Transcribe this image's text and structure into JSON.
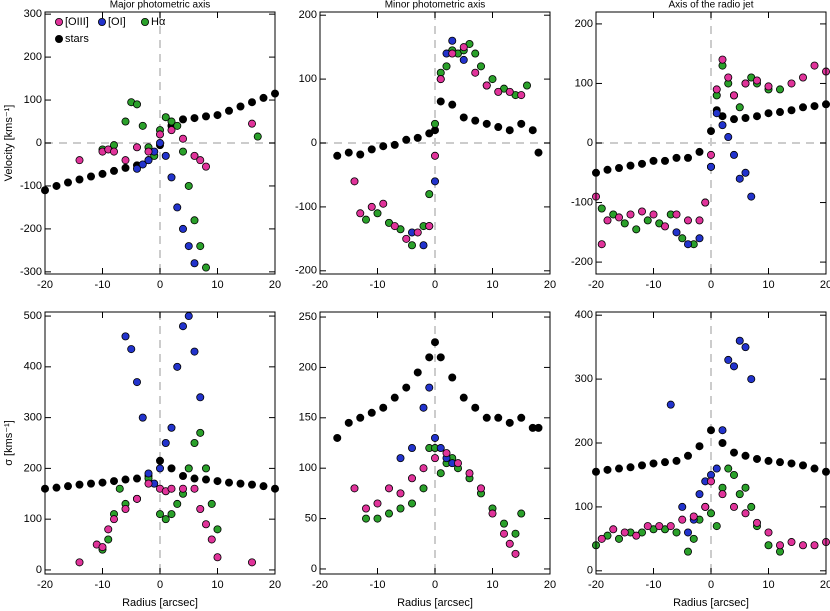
{
  "chart_data": [
    {
      "type": "scatter",
      "title": "Major photometric axis",
      "ylabel": "Velocity [kms⁻¹]",
      "xlim": [
        -20,
        20
      ],
      "xticks": [
        -20,
        -10,
        0,
        10,
        20
      ],
      "ylim": [
        -305,
        305
      ],
      "yticks": [
        -300,
        -200,
        -100,
        0,
        100,
        200,
        300
      ],
      "legend": "upper left",
      "series": [
        {
          "name": "[OIII]",
          "color": "#e0339a",
          "x": [
            -14,
            -10,
            -9,
            -8,
            -6,
            -4,
            -2,
            0,
            2,
            4,
            6,
            7,
            8,
            16
          ],
          "values": [
            -40,
            -20,
            -15,
            -20,
            -40,
            -10,
            -20,
            20,
            30,
            10,
            -30,
            -40,
            -55,
            45
          ]
        },
        {
          "name": "[OI]",
          "color": "#2233cc",
          "x": [
            -4,
            -3,
            -2,
            -1,
            0,
            1,
            2,
            3,
            4,
            5,
            6
          ],
          "values": [
            -60,
            -50,
            -40,
            -20,
            0,
            -30,
            -80,
            -150,
            -200,
            -240,
            -280
          ]
        },
        {
          "name": "Hα",
          "color": "#2aa02a",
          "x": [
            -10,
            -8,
            -6,
            -5,
            -4,
            -3,
            -2,
            -1,
            0,
            1,
            2,
            3,
            4,
            5,
            6,
            7,
            8,
            17
          ],
          "values": [
            -15,
            -5,
            50,
            95,
            90,
            40,
            -10,
            -30,
            30,
            60,
            50,
            40,
            -20,
            -100,
            -180,
            -240,
            -290,
            15
          ]
        },
        {
          "name": "stars",
          "color": "#000000",
          "x": [
            -20,
            -18,
            -16,
            -14,
            -12,
            -10,
            -8,
            -6,
            -4,
            -2,
            0,
            2,
            4,
            6,
            8,
            10,
            12,
            14,
            16,
            18,
            20
          ],
          "values": [
            -110,
            -100,
            -92,
            -85,
            -78,
            -72,
            -65,
            -58,
            -52,
            -40,
            -5,
            40,
            55,
            58,
            62,
            65,
            75,
            85,
            95,
            105,
            115
          ]
        }
      ]
    },
    {
      "type": "scatter",
      "title": "Minor photometric axis",
      "xlim": [
        -20,
        20
      ],
      "xticks": [
        -20,
        -10,
        0,
        10,
        20
      ],
      "ylim": [
        -205,
        205
      ],
      "yticks": [
        -200,
        -100,
        0,
        100,
        200
      ],
      "series": [
        {
          "color": "#e0339a",
          "x": [
            -14,
            -13,
            -11,
            -9,
            -7,
            -5,
            -3,
            -1,
            0,
            1,
            3,
            5,
            7,
            9,
            11,
            13,
            15
          ],
          "values": [
            -60,
            -110,
            -100,
            -95,
            -130,
            -150,
            -140,
            -130,
            -20,
            100,
            140,
            150,
            110,
            90,
            80,
            80,
            75
          ]
        },
        {
          "color": "#2233cc",
          "x": [
            -4,
            -2,
            -1,
            0,
            1,
            2,
            3,
            5
          ],
          "values": [
            -140,
            -160,
            -130,
            -60,
            100,
            140,
            160,
            130
          ]
        },
        {
          "color": "#2aa02a",
          "x": [
            -12,
            -10,
            -8,
            -6,
            -4,
            -2,
            -1,
            0,
            1,
            2,
            3,
            4,
            5,
            6,
            7,
            8,
            9,
            10,
            12,
            14,
            16
          ],
          "values": [
            -120,
            -110,
            -125,
            -135,
            -160,
            -130,
            -80,
            30,
            110,
            120,
            145,
            140,
            145,
            155,
            140,
            120,
            90,
            100,
            85,
            75,
            90
          ]
        },
        {
          "color": "#000000",
          "x": [
            -17,
            -15,
            -13,
            -11,
            -9,
            -7,
            -5,
            -3,
            -1,
            0,
            1,
            3,
            5,
            7,
            9,
            11,
            13,
            15,
            17,
            18
          ],
          "values": [
            -20,
            -15,
            -18,
            -10,
            -5,
            -3,
            5,
            8,
            15,
            20,
            65,
            60,
            40,
            35,
            30,
            25,
            20,
            30,
            20,
            -15
          ]
        }
      ]
    },
    {
      "type": "scatter",
      "title": "Axis of the radio jet",
      "xlim": [
        -20,
        20
      ],
      "xticks": [
        -20,
        -10,
        0,
        10,
        20
      ],
      "ylim": [
        -220,
        220
      ],
      "yticks": [
        -200,
        -100,
        0,
        100,
        200
      ],
      "series": [
        {
          "color": "#e0339a",
          "x": [
            -20,
            -19,
            -18,
            -16,
            -14,
            -12,
            -10,
            -8,
            -6,
            -4,
            -2,
            -1,
            0,
            1,
            2,
            3,
            4,
            6,
            8,
            10,
            14,
            16,
            18,
            20
          ],
          "values": [
            -90,
            -170,
            -130,
            -125,
            -120,
            -115,
            -120,
            -140,
            -120,
            -130,
            -130,
            -100,
            -20,
            90,
            140,
            110,
            80,
            100,
            105,
            95,
            100,
            110,
            130,
            120
          ]
        },
        {
          "color": "#2233cc",
          "x": [
            -6,
            -4,
            -2,
            0,
            1,
            2,
            3,
            4,
            5,
            6,
            7
          ],
          "values": [
            -150,
            -170,
            -160,
            -40,
            50,
            30,
            10,
            -20,
            -60,
            -50,
            -90
          ]
        },
        {
          "color": "#2aa02a",
          "x": [
            -19,
            -17,
            -15,
            -13,
            -11,
            -9,
            -7,
            -5,
            -3,
            -1,
            0,
            1,
            2,
            3,
            4,
            5,
            6,
            7,
            8,
            10,
            12
          ],
          "values": [
            -110,
            -120,
            -135,
            -145,
            -130,
            -135,
            -120,
            -160,
            -170,
            -100,
            -40,
            80,
            130,
            100,
            80,
            60,
            100,
            110,
            100,
            90,
            90
          ]
        },
        {
          "color": "#000000",
          "x": [
            -20,
            -18,
            -16,
            -14,
            -12,
            -10,
            -8,
            -6,
            -4,
            -2,
            0,
            1,
            2,
            4,
            6,
            8,
            10,
            12,
            14,
            16,
            18,
            20
          ],
          "values": [
            -50,
            -45,
            -42,
            -38,
            -35,
            -30,
            -30,
            -25,
            -25,
            -15,
            20,
            55,
            45,
            40,
            42,
            45,
            50,
            52,
            55,
            60,
            62,
            65
          ]
        }
      ]
    },
    {
      "type": "scatter",
      "ylabel": "σ [kms⁻¹]",
      "xlabel": "Radius [arcsec]",
      "xlim": [
        -20,
        20
      ],
      "xticks": [
        -20,
        -10,
        0,
        10,
        20
      ],
      "ylim": [
        -8,
        508
      ],
      "yticks": [
        0,
        100,
        200,
        300,
        400,
        500
      ],
      "series": [
        {
          "color": "#e0339a",
          "x": [
            -14,
            -11,
            -10,
            -9,
            -8,
            -6,
            -4,
            -2,
            0,
            1,
            2,
            4,
            6,
            7,
            8,
            9,
            10,
            16
          ],
          "values": [
            15,
            50,
            45,
            80,
            100,
            120,
            140,
            170,
            160,
            155,
            160,
            160,
            160,
            120,
            90,
            60,
            25,
            15
          ]
        },
        {
          "color": "#2233cc",
          "x": [
            -6,
            -5,
            -4,
            -3,
            -2,
            -1,
            0,
            1,
            2,
            3,
            4,
            5,
            6,
            7
          ],
          "values": [
            460,
            435,
            370,
            300,
            190,
            170,
            200,
            250,
            280,
            400,
            480,
            500,
            430,
            340
          ]
        },
        {
          "color": "#2aa02a",
          "x": [
            -10,
            -9,
            -8,
            -7,
            -6,
            -4,
            -2,
            0,
            1,
            2,
            3,
            4,
            5,
            6,
            7,
            8,
            9,
            10
          ],
          "values": [
            40,
            60,
            110,
            160,
            130,
            140,
            180,
            110,
            100,
            110,
            130,
            150,
            200,
            250,
            270,
            200,
            130,
            80
          ]
        },
        {
          "color": "#000000",
          "x": [
            -20,
            -18,
            -16,
            -14,
            -12,
            -10,
            -8,
            -6,
            -4,
            -2,
            0,
            2,
            4,
            6,
            8,
            10,
            12,
            14,
            16,
            18,
            20
          ],
          "values": [
            160,
            162,
            165,
            168,
            170,
            172,
            175,
            178,
            180,
            185,
            215,
            200,
            185,
            180,
            178,
            175,
            172,
            170,
            168,
            165,
            160
          ]
        }
      ]
    },
    {
      "type": "scatter",
      "xlabel": "Radius [arcsec]",
      "xlim": [
        -20,
        20
      ],
      "xticks": [
        -20,
        -10,
        0,
        10,
        20
      ],
      "ylim": [
        -5,
        255
      ],
      "yticks": [
        0,
        50,
        100,
        150,
        200,
        250
      ],
      "series": [
        {
          "color": "#e0339a",
          "x": [
            -14,
            -12,
            -10,
            -8,
            -6,
            -4,
            -2,
            0,
            2,
            4,
            6,
            8,
            10,
            12,
            13,
            14
          ],
          "values": [
            80,
            60,
            65,
            80,
            75,
            90,
            100,
            110,
            115,
            105,
            95,
            80,
            55,
            35,
            25,
            15
          ]
        },
        {
          "color": "#2233cc",
          "x": [
            -6,
            -4,
            -2,
            -1,
            0,
            1,
            2,
            3
          ],
          "values": [
            110,
            120,
            160,
            180,
            130,
            120,
            110,
            105
          ]
        },
        {
          "color": "#2aa02a",
          "x": [
            -12,
            -10,
            -8,
            -6,
            -4,
            -2,
            -1,
            0,
            1,
            2,
            3,
            4,
            6,
            8,
            10,
            12,
            14,
            15
          ],
          "values": [
            50,
            50,
            55,
            60,
            65,
            80,
            120,
            120,
            95,
            105,
            110,
            100,
            90,
            75,
            60,
            45,
            35,
            55
          ]
        },
        {
          "color": "#000000",
          "x": [
            -17,
            -15,
            -13,
            -11,
            -9,
            -7,
            -5,
            -3,
            -1,
            0,
            1,
            3,
            5,
            7,
            9,
            11,
            13,
            15,
            17,
            18
          ],
          "values": [
            130,
            145,
            150,
            155,
            160,
            170,
            180,
            195,
            210,
            225,
            210,
            190,
            170,
            160,
            150,
            150,
            145,
            150,
            140,
            140
          ]
        }
      ]
    },
    {
      "type": "scatter",
      "xlabel": "Radius [arcsec]",
      "xlim": [
        -20,
        20
      ],
      "xticks": [
        -20,
        -10,
        0,
        10,
        20
      ],
      "ylim": [
        -5,
        405
      ],
      "yticks": [
        0,
        100,
        200,
        300,
        400
      ],
      "series": [
        {
          "color": "#e0339a",
          "x": [
            -19,
            -17,
            -15,
            -13,
            -11,
            -9,
            -7,
            -5,
            -3,
            -1,
            0,
            2,
            4,
            6,
            8,
            10,
            12,
            14,
            16,
            18,
            20
          ],
          "values": [
            50,
            65,
            60,
            55,
            70,
            70,
            70,
            80,
            85,
            100,
            140,
            120,
            100,
            90,
            75,
            60,
            40,
            45,
            40,
            40,
            45
          ]
        },
        {
          "color": "#2233cc",
          "x": [
            -7,
            -5,
            -4,
            -3,
            -2,
            -1,
            0,
            1,
            2,
            3,
            4,
            5,
            6,
            7
          ],
          "values": [
            260,
            100,
            60,
            80,
            120,
            140,
            150,
            160,
            220,
            330,
            320,
            360,
            350,
            300
          ]
        },
        {
          "color": "#2aa02a",
          "x": [
            -20,
            -18,
            -16,
            -14,
            -12,
            -10,
            -8,
            -6,
            -4,
            -3,
            -2,
            -1,
            0,
            1,
            2,
            3,
            4,
            5,
            6,
            7,
            8,
            10,
            12
          ],
          "values": [
            40,
            55,
            50,
            60,
            60,
            65,
            65,
            60,
            30,
            50,
            80,
            100,
            90,
            70,
            130,
            160,
            150,
            120,
            130,
            100,
            70,
            40,
            30
          ]
        },
        {
          "color": "#000000",
          "x": [
            -20,
            -18,
            -16,
            -14,
            -12,
            -10,
            -8,
            -6,
            -4,
            -2,
            0,
            2,
            4,
            6,
            8,
            10,
            12,
            14,
            16,
            18,
            20
          ],
          "values": [
            155,
            158,
            160,
            162,
            165,
            168,
            170,
            172,
            180,
            195,
            220,
            200,
            185,
            180,
            175,
            172,
            170,
            168,
            165,
            160,
            155
          ]
        }
      ]
    }
  ]
}
